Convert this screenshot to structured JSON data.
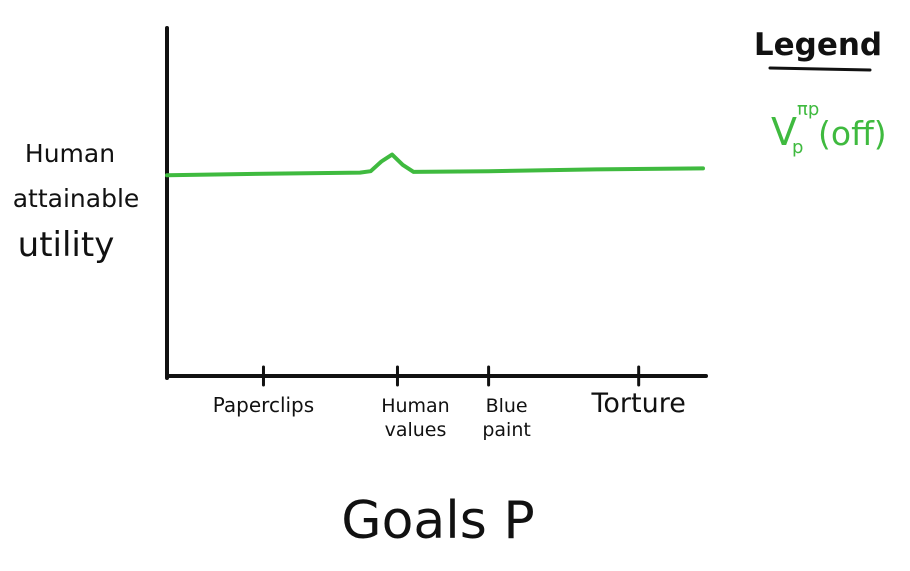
{
  "chart_data": {
    "type": "line",
    "ylabel": [
      "Human",
      "attainable",
      "utility"
    ],
    "xlabel": "Goals P",
    "categories": [
      "Paperclips",
      "Human values",
      "Blue paint",
      "Torture"
    ],
    "category_labels": [
      [
        "Paperclips"
      ],
      [
        "Human",
        "values"
      ],
      [
        "Blue",
        "paint"
      ],
      [
        "Torture"
      ]
    ],
    "category_positions": [
      0.18,
      0.43,
      0.6,
      0.88
    ],
    "series": [
      {
        "name": "Vp^πp(off)",
        "color": "#3fba3f",
        "x": [
          0.0,
          0.2,
          0.36,
          0.38,
          0.4,
          0.42,
          0.44,
          0.46,
          0.6,
          0.8,
          1.0
        ],
        "values": [
          0.58,
          0.585,
          0.588,
          0.592,
          0.62,
          0.64,
          0.61,
          0.59,
          0.592,
          0.597,
          0.6
        ]
      }
    ],
    "legend": {
      "title": "Legend",
      "base": "V",
      "subscript": "p",
      "superscript": "πp",
      "suffix": "(off)",
      "placement": "top-right"
    },
    "grid": false,
    "ylim": [
      0,
      1
    ]
  }
}
